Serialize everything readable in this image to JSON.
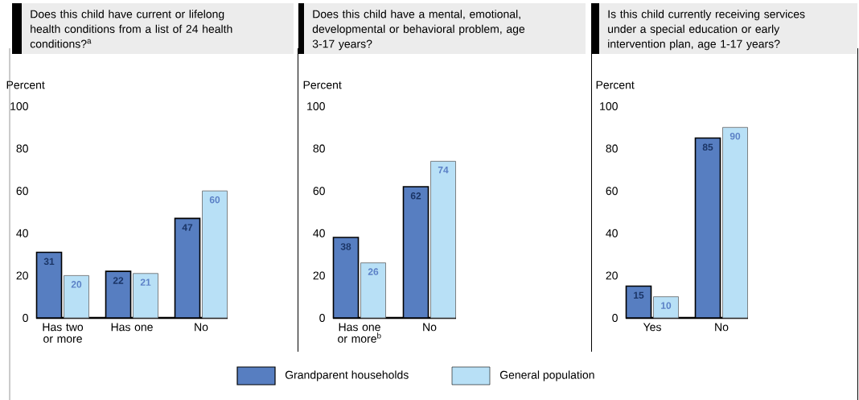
{
  "chart_data": [
    {
      "type": "bar",
      "title": "Does this child have current or lifelong health conditions from a list of 24 health conditions?$^{a}$",
      "ylabel": "Percent",
      "categories": [
        "Has two or more",
        "Has one",
        "No"
      ],
      "series": [
        {
          "name": "Grandparent households",
          "color": "#577ec1",
          "values": [
            31,
            22,
            47
          ]
        },
        {
          "name": "General population",
          "color": "#b8e0f6",
          "values": [
            20,
            21,
            60
          ]
        }
      ],
      "ylim": [
        0,
        100
      ],
      "yticks": [
        0,
        20,
        40,
        60,
        80,
        100
      ],
      "data_labels": true,
      "legend": "bottom"
    },
    {
      "type": "bar",
      "title": "Does this child have a mental, emotional, developmental or behavioral problem, age 3-17 years?",
      "ylabel": "Percent",
      "categories": [
        "Has one or more$^{b}$",
        "No"
      ],
      "series": [
        {
          "color": "#577ec1",
          "values": [
            38,
            62
          ]
        },
        {
          "color": "#b8e0f6",
          "values": [
            26,
            74
          ]
        }
      ],
      "ylim": [
        0,
        100
      ],
      "yticks": [
        0,
        20,
        40,
        60,
        80,
        100
      ],
      "data_labels": true
    },
    {
      "type": "bar",
      "title": "Is this child currently receiving services under a special education or early intervention plan, age 1-17 years?",
      "ylabel": "Percent",
      "categories": [
        "Yes",
        "No"
      ],
      "series": [
        {
          "color": "#577ec1",
          "values": [
            15,
            85
          ]
        },
        {
          "color": "#b8e0f6",
          "values": [
            10,
            90
          ]
        }
      ],
      "ylim": [
        0,
        100
      ],
      "yticks": [
        0,
        20,
        40,
        60,
        80,
        100
      ],
      "data_labels": true
    }
  ]
}
